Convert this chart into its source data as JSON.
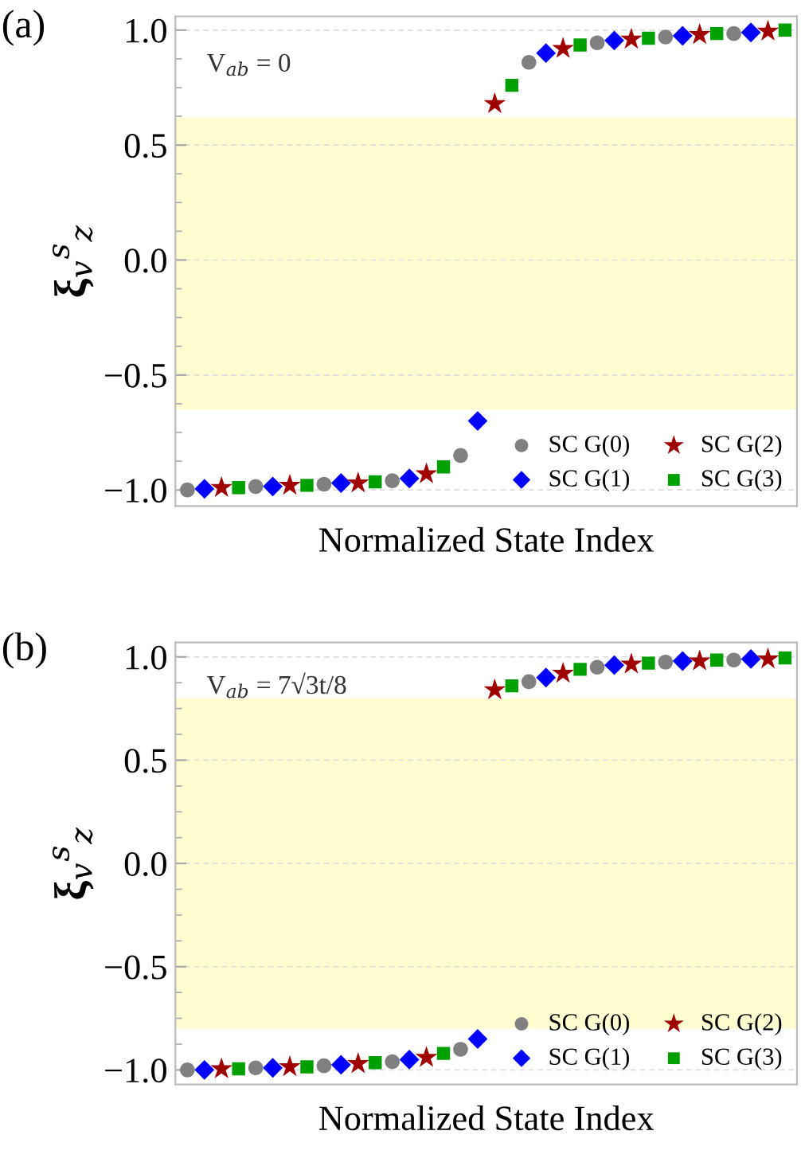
{
  "chart_data": [
    {
      "type": "scatter",
      "title": "(a)",
      "xlabel": "Normalized State Index",
      "ylabel": "ξ$_{v}$$^{s}$$_{z}$",
      "annotations": [
        "V$_{ab}$ = 0"
      ],
      "categories": [
        null,
        null,
        null,
        null,
        null,
        null,
        null,
        null,
        null,
        null,
        null,
        null,
        null,
        null,
        null,
        null,
        null,
        null,
        null,
        null,
        null,
        null,
        null,
        null,
        null,
        null,
        null,
        null,
        null,
        null,
        null,
        null,
        null,
        null,
        null,
        null
      ],
      "series": [
        {
          "name": "SC G(0)",
          "color": "#808080",
          "marker": "circle",
          "values": [
            -1.0,
            null,
            null,
            null,
            -0.985,
            null,
            null,
            null,
            -0.975,
            null,
            null,
            null,
            -0.96,
            null,
            null,
            null,
            -0.85,
            null,
            null,
            null,
            0.86,
            null,
            null,
            null,
            0.945,
            null,
            null,
            null,
            0.97,
            null,
            null,
            null,
            0.985,
            null,
            null,
            null
          ]
        },
        {
          "name": "SC G(1)",
          "color": "#0000ff",
          "marker": "diamond",
          "values": [
            null,
            -0.995,
            null,
            null,
            null,
            -0.985,
            null,
            null,
            null,
            -0.97,
            null,
            null,
            null,
            -0.95,
            null,
            null,
            null,
            -0.7,
            null,
            null,
            null,
            0.9,
            null,
            null,
            null,
            0.955,
            null,
            null,
            null,
            0.975,
            null,
            null,
            null,
            0.99,
            null,
            null
          ]
        },
        {
          "name": "SC G(2)",
          "color": "#a00000",
          "marker": "star",
          "values": [
            null,
            null,
            -0.99,
            null,
            null,
            null,
            -0.98,
            null,
            null,
            null,
            -0.97,
            null,
            null,
            null,
            -0.93,
            null,
            null,
            null,
            0.68,
            null,
            null,
            null,
            0.92,
            null,
            null,
            null,
            0.96,
            null,
            null,
            null,
            0.98,
            null,
            null,
            null,
            0.995,
            null
          ]
        },
        {
          "name": "SC G(3)",
          "color": "#00a000",
          "marker": "square",
          "values": [
            null,
            null,
            null,
            -0.99,
            null,
            null,
            null,
            -0.98,
            null,
            null,
            null,
            -0.965,
            null,
            null,
            null,
            -0.9,
            null,
            null,
            null,
            0.76,
            null,
            null,
            null,
            0.935,
            null,
            null,
            null,
            0.965,
            null,
            null,
            null,
            0.985,
            null,
            null,
            null,
            1.0
          ]
        }
      ],
      "bands": [
        {
          "axis": "y",
          "from": -0.65,
          "to": 0.62,
          "color": "#fffdd0"
        }
      ],
      "ylim": [
        -1.07,
        1.06
      ],
      "yticks": [
        {
          "value": -1.0,
          "label": "−1.0"
        },
        {
          "value": -0.5,
          "label": "−0.5"
        },
        {
          "value": 0.0,
          "label": "0.0"
        },
        {
          "value": 0.5,
          "label": "0.5"
        },
        {
          "value": 1.0,
          "label": "1.0"
        }
      ],
      "grid": "y",
      "legend": "bottom right"
    },
    {
      "type": "scatter",
      "title": "(b)",
      "xlabel": "Normalized State Index",
      "ylabel": "ξ$_{v}$$^{s}$$_{z}$",
      "annotations": [
        "V$_{ab}$ = 7√3t/8"
      ],
      "categories": [
        null,
        null,
        null,
        null,
        null,
        null,
        null,
        null,
        null,
        null,
        null,
        null,
        null,
        null,
        null,
        null,
        null,
        null,
        null,
        null,
        null,
        null,
        null,
        null,
        null,
        null,
        null,
        null,
        null,
        null,
        null,
        null,
        null,
        null,
        null,
        null
      ],
      "series": [
        {
          "name": "SC G(0)",
          "color": "#808080",
          "marker": "circle",
          "values": [
            -1.0,
            null,
            null,
            null,
            -0.99,
            null,
            null,
            null,
            -0.98,
            null,
            null,
            null,
            -0.96,
            null,
            null,
            null,
            -0.9,
            null,
            null,
            null,
            0.88,
            null,
            null,
            null,
            0.95,
            null,
            null,
            null,
            0.975,
            null,
            null,
            null,
            0.985,
            null,
            null,
            null
          ]
        },
        {
          "name": "SC G(1)",
          "color": "#0000ff",
          "marker": "diamond",
          "values": [
            null,
            -1.0,
            null,
            null,
            null,
            -0.99,
            null,
            null,
            null,
            -0.975,
            null,
            null,
            null,
            -0.95,
            null,
            null,
            null,
            -0.85,
            null,
            null,
            null,
            0.9,
            null,
            null,
            null,
            0.96,
            null,
            null,
            null,
            0.98,
            null,
            null,
            null,
            0.99,
            null,
            null
          ]
        },
        {
          "name": "SC G(2)",
          "color": "#a00000",
          "marker": "star",
          "values": [
            null,
            null,
            -0.995,
            null,
            null,
            null,
            -0.985,
            null,
            null,
            null,
            -0.97,
            null,
            null,
            null,
            -0.94,
            null,
            null,
            null,
            0.84,
            null,
            null,
            null,
            0.92,
            null,
            null,
            null,
            0.965,
            null,
            null,
            null,
            0.98,
            null,
            null,
            null,
            0.99,
            null
          ]
        },
        {
          "name": "SC G(3)",
          "color": "#00a000",
          "marker": "square",
          "values": [
            null,
            null,
            null,
            -0.995,
            null,
            null,
            null,
            -0.985,
            null,
            null,
            null,
            -0.965,
            null,
            null,
            null,
            -0.92,
            null,
            null,
            null,
            0.86,
            null,
            null,
            null,
            0.94,
            null,
            null,
            null,
            0.97,
            null,
            null,
            null,
            0.985,
            null,
            null,
            null,
            0.995
          ]
        }
      ],
      "bands": [
        {
          "axis": "y",
          "from": -0.8,
          "to": 0.8,
          "color": "#fffdd0"
        }
      ],
      "ylim": [
        -1.07,
        1.07
      ],
      "yticks": [
        {
          "value": -1.0,
          "label": "−1.0"
        },
        {
          "value": -0.5,
          "label": "−0.5"
        },
        {
          "value": 0.0,
          "label": "0.0"
        },
        {
          "value": 0.5,
          "label": "0.5"
        },
        {
          "value": 1.0,
          "label": "1.0"
        }
      ],
      "grid": "y",
      "legend": "bottom right"
    }
  ]
}
